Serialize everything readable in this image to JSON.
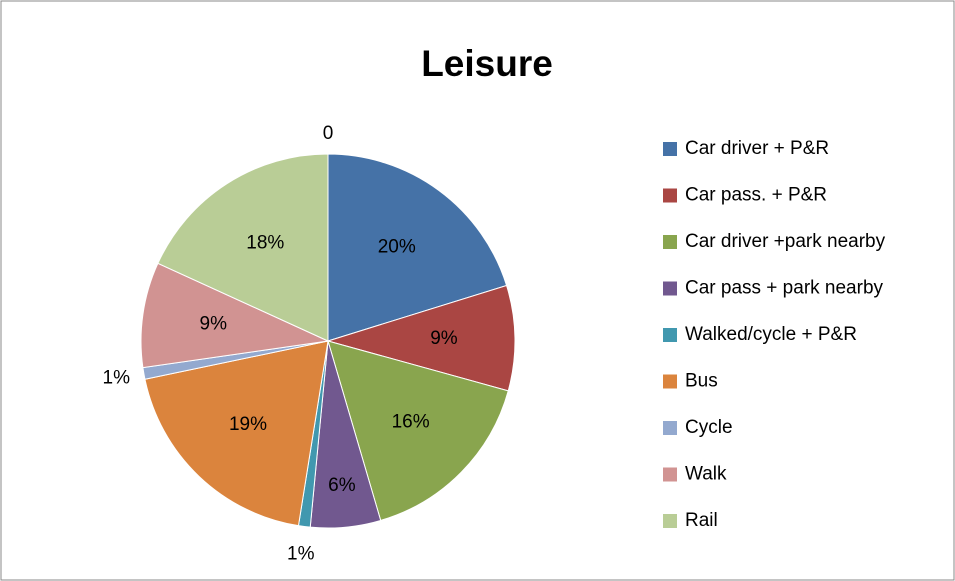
{
  "chart_data": {
    "type": "pie",
    "title": "Leisure",
    "categories": [
      "Car driver + P&R",
      "Car pass. + P&R",
      "Car driver +park nearby",
      "Car pass + park nearby",
      "Walked/cycle + P&R",
      "Bus",
      "Cycle",
      "Walk",
      "Rail",
      null
    ],
    "values": [
      20,
      9,
      16,
      6,
      1,
      19,
      1,
      9,
      18,
      0
    ],
    "value_labels": [
      "20%",
      "9%",
      "16%",
      "6%",
      "1%",
      "19%",
      "1%",
      "9%",
      "18%",
      "0"
    ],
    "colors": [
      "#4572a7",
      "#aa4643",
      "#89a54e",
      "#71588f",
      "#4198af",
      "#db843d",
      "#93a9cf",
      "#d19392",
      "#b9cd96",
      "#808080"
    ],
    "legend": "right"
  }
}
